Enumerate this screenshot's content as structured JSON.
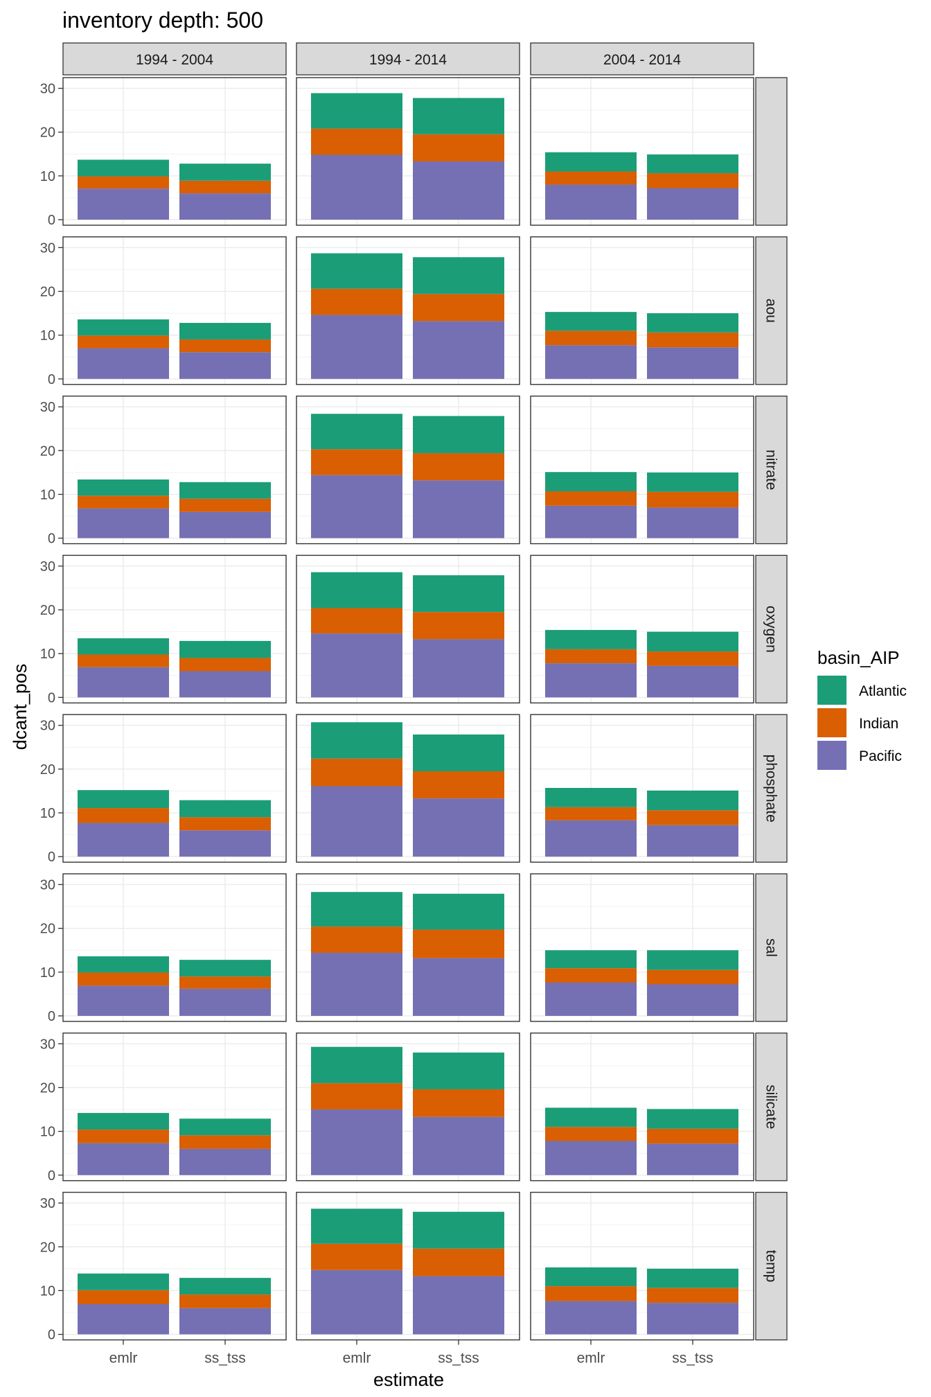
{
  "chart_data": {
    "type": "bar",
    "stacked": true,
    "title": "inventory depth: 500",
    "xlabel": "estimate",
    "ylabel": "dcant_pos",
    "ylim": [
      0,
      31.5
    ],
    "yticks": [
      0,
      10,
      20,
      30
    ],
    "grid": true,
    "legend": {
      "title": "basin_AIP",
      "position": "right",
      "entries": [
        "Atlantic",
        "Indian",
        "Pacific"
      ]
    },
    "colors": {
      "Atlantic": "#1b9e77",
      "Indian": "#d95f02",
      "Pacific": "#7570b3"
    },
    "categories": [
      "emlr",
      "ss_tss"
    ],
    "columns": [
      "1994 - 2004",
      "1994 - 2014",
      "2004 - 2014"
    ],
    "rows": [
      "",
      "aou",
      "nitrate",
      "oxygen",
      "phosphate",
      "sal",
      "silicate",
      "temp"
    ],
    "panels": [
      [
        {
          "emlr": {
            "Pacific": 7.1,
            "Indian": 2.8,
            "Atlantic": 3.8
          },
          "ss_tss": {
            "Pacific": 6.0,
            "Indian": 2.9,
            "Atlantic": 3.9
          }
        },
        {
          "emlr": {
            "Pacific": 14.8,
            "Indian": 6.0,
            "Atlantic": 8.1
          },
          "ss_tss": {
            "Pacific": 13.3,
            "Indian": 6.2,
            "Atlantic": 8.3
          }
        },
        {
          "emlr": {
            "Pacific": 8.0,
            "Indian": 3.0,
            "Atlantic": 4.4
          },
          "ss_tss": {
            "Pacific": 7.2,
            "Indian": 3.4,
            "Atlantic": 4.3
          }
        }
      ],
      [
        {
          "emlr": {
            "Pacific": 7.0,
            "Indian": 2.9,
            "Atlantic": 3.7
          },
          "ss_tss": {
            "Pacific": 6.1,
            "Indian": 2.9,
            "Atlantic": 3.8
          }
        },
        {
          "emlr": {
            "Pacific": 14.6,
            "Indian": 6.0,
            "Atlantic": 8.1
          },
          "ss_tss": {
            "Pacific": 13.2,
            "Indian": 6.2,
            "Atlantic": 8.4
          }
        },
        {
          "emlr": {
            "Pacific": 7.7,
            "Indian": 3.3,
            "Atlantic": 4.3
          },
          "ss_tss": {
            "Pacific": 7.2,
            "Indian": 3.4,
            "Atlantic": 4.4
          }
        }
      ],
      [
        {
          "emlr": {
            "Pacific": 6.8,
            "Indian": 2.9,
            "Atlantic": 3.7
          },
          "ss_tss": {
            "Pacific": 6.0,
            "Indian": 3.0,
            "Atlantic": 3.8
          }
        },
        {
          "emlr": {
            "Pacific": 14.4,
            "Indian": 5.9,
            "Atlantic": 8.1
          },
          "ss_tss": {
            "Pacific": 13.2,
            "Indian": 6.2,
            "Atlantic": 8.5
          }
        },
        {
          "emlr": {
            "Pacific": 7.4,
            "Indian": 3.3,
            "Atlantic": 4.4
          },
          "ss_tss": {
            "Pacific": 7.0,
            "Indian": 3.6,
            "Atlantic": 4.4
          }
        }
      ],
      [
        {
          "emlr": {
            "Pacific": 6.9,
            "Indian": 2.9,
            "Atlantic": 3.7
          },
          "ss_tss": {
            "Pacific": 6.0,
            "Indian": 3.0,
            "Atlantic": 3.9
          }
        },
        {
          "emlr": {
            "Pacific": 14.6,
            "Indian": 5.8,
            "Atlantic": 8.2
          },
          "ss_tss": {
            "Pacific": 13.3,
            "Indian": 6.2,
            "Atlantic": 8.4
          }
        },
        {
          "emlr": {
            "Pacific": 7.8,
            "Indian": 3.2,
            "Atlantic": 4.4
          },
          "ss_tss": {
            "Pacific": 7.2,
            "Indian": 3.3,
            "Atlantic": 4.5
          }
        }
      ],
      [
        {
          "emlr": {
            "Pacific": 7.7,
            "Indian": 3.4,
            "Atlantic": 4.1
          },
          "ss_tss": {
            "Pacific": 6.0,
            "Indian": 3.0,
            "Atlantic": 3.9
          }
        },
        {
          "emlr": {
            "Pacific": 16.1,
            "Indian": 6.3,
            "Atlantic": 8.3
          },
          "ss_tss": {
            "Pacific": 13.3,
            "Indian": 6.2,
            "Atlantic": 8.4
          }
        },
        {
          "emlr": {
            "Pacific": 8.3,
            "Indian": 3.0,
            "Atlantic": 4.4
          },
          "ss_tss": {
            "Pacific": 7.2,
            "Indian": 3.4,
            "Atlantic": 4.5
          }
        }
      ],
      [
        {
          "emlr": {
            "Pacific": 6.9,
            "Indian": 3.0,
            "Atlantic": 3.7
          },
          "ss_tss": {
            "Pacific": 6.2,
            "Indian": 2.8,
            "Atlantic": 3.8
          }
        },
        {
          "emlr": {
            "Pacific": 14.4,
            "Indian": 6.0,
            "Atlantic": 7.9
          },
          "ss_tss": {
            "Pacific": 13.2,
            "Indian": 6.5,
            "Atlantic": 8.2
          }
        },
        {
          "emlr": {
            "Pacific": 7.6,
            "Indian": 3.3,
            "Atlantic": 4.1
          },
          "ss_tss": {
            "Pacific": 7.2,
            "Indian": 3.3,
            "Atlantic": 4.5
          }
        }
      ],
      [
        {
          "emlr": {
            "Pacific": 7.3,
            "Indian": 3.1,
            "Atlantic": 3.8
          },
          "ss_tss": {
            "Pacific": 6.0,
            "Indian": 3.1,
            "Atlantic": 3.8
          }
        },
        {
          "emlr": {
            "Pacific": 15.0,
            "Indian": 6.0,
            "Atlantic": 8.3
          },
          "ss_tss": {
            "Pacific": 13.3,
            "Indian": 6.3,
            "Atlantic": 8.4
          }
        },
        {
          "emlr": {
            "Pacific": 7.8,
            "Indian": 3.2,
            "Atlantic": 4.4
          },
          "ss_tss": {
            "Pacific": 7.2,
            "Indian": 3.4,
            "Atlantic": 4.5
          }
        }
      ],
      [
        {
          "emlr": {
            "Pacific": 6.9,
            "Indian": 3.2,
            "Atlantic": 3.8
          },
          "ss_tss": {
            "Pacific": 6.0,
            "Indian": 3.1,
            "Atlantic": 3.8
          }
        },
        {
          "emlr": {
            "Pacific": 14.7,
            "Indian": 6.0,
            "Atlantic": 8.0
          },
          "ss_tss": {
            "Pacific": 13.3,
            "Indian": 6.3,
            "Atlantic": 8.4
          }
        },
        {
          "emlr": {
            "Pacific": 7.6,
            "Indian": 3.4,
            "Atlantic": 4.3
          },
          "ss_tss": {
            "Pacific": 7.2,
            "Indian": 3.4,
            "Atlantic": 4.4
          }
        }
      ]
    ]
  }
}
